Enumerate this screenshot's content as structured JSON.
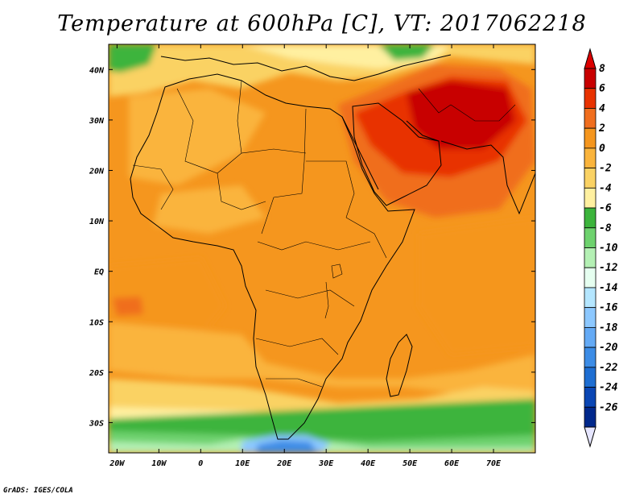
{
  "title": "Temperature at 600hPa [C], VT: 2017062218",
  "credit": "GrADS: IGES/COLA",
  "map": {
    "lon_range": [
      -22,
      80
    ],
    "lat_range": [
      -36,
      45
    ],
    "lon_ticks": [
      {
        "value": -20,
        "label": "20W"
      },
      {
        "value": -10,
        "label": "10W"
      },
      {
        "value": 0,
        "label": "0"
      },
      {
        "value": 10,
        "label": "10E"
      },
      {
        "value": 20,
        "label": "20E"
      },
      {
        "value": 30,
        "label": "30E"
      },
      {
        "value": 40,
        "label": "40E"
      },
      {
        "value": 50,
        "label": "50E"
      },
      {
        "value": 60,
        "label": "60E"
      },
      {
        "value": 70,
        "label": "70E"
      }
    ],
    "lat_ticks": [
      {
        "value": 40,
        "label": "40N"
      },
      {
        "value": 30,
        "label": "30N"
      },
      {
        "value": 20,
        "label": "20N"
      },
      {
        "value": 10,
        "label": "10N"
      },
      {
        "value": 0,
        "label": "EQ"
      },
      {
        "value": -10,
        "label": "10S"
      },
      {
        "value": -20,
        "label": "20S"
      },
      {
        "value": -30,
        "label": "30S"
      }
    ]
  },
  "colorbar": {
    "levels": [
      {
        "label": "8",
        "color": "#c80000"
      },
      {
        "label": "6",
        "color": "#e83200"
      },
      {
        "label": "4",
        "color": "#f06e1e"
      },
      {
        "label": "2",
        "color": "#f5961e"
      },
      {
        "label": "0",
        "color": "#fab43c"
      },
      {
        "label": "-2",
        "color": "#fad264"
      },
      {
        "label": "-4",
        "color": "#fff0a0"
      },
      {
        "label": "-6",
        "color": "#3cb43c"
      },
      {
        "label": "-8",
        "color": "#6ed26e"
      },
      {
        "label": "-10",
        "color": "#b4f0b4"
      },
      {
        "label": "-12",
        "color": "#e6fff0"
      },
      {
        "label": "-14",
        "color": "#b4e6ff"
      },
      {
        "label": "-16",
        "color": "#8cc8ff"
      },
      {
        "label": "-18",
        "color": "#64aaf5"
      },
      {
        "label": "-20",
        "color": "#3c8ce6"
      },
      {
        "label": "-22",
        "color": "#1e6ed2"
      },
      {
        "label": "-24",
        "color": "#0a46b4"
      },
      {
        "label": "-26",
        "color": "#00288c"
      }
    ],
    "top_color": "#dc0000",
    "bottom_color": "#e6e6ff"
  }
}
